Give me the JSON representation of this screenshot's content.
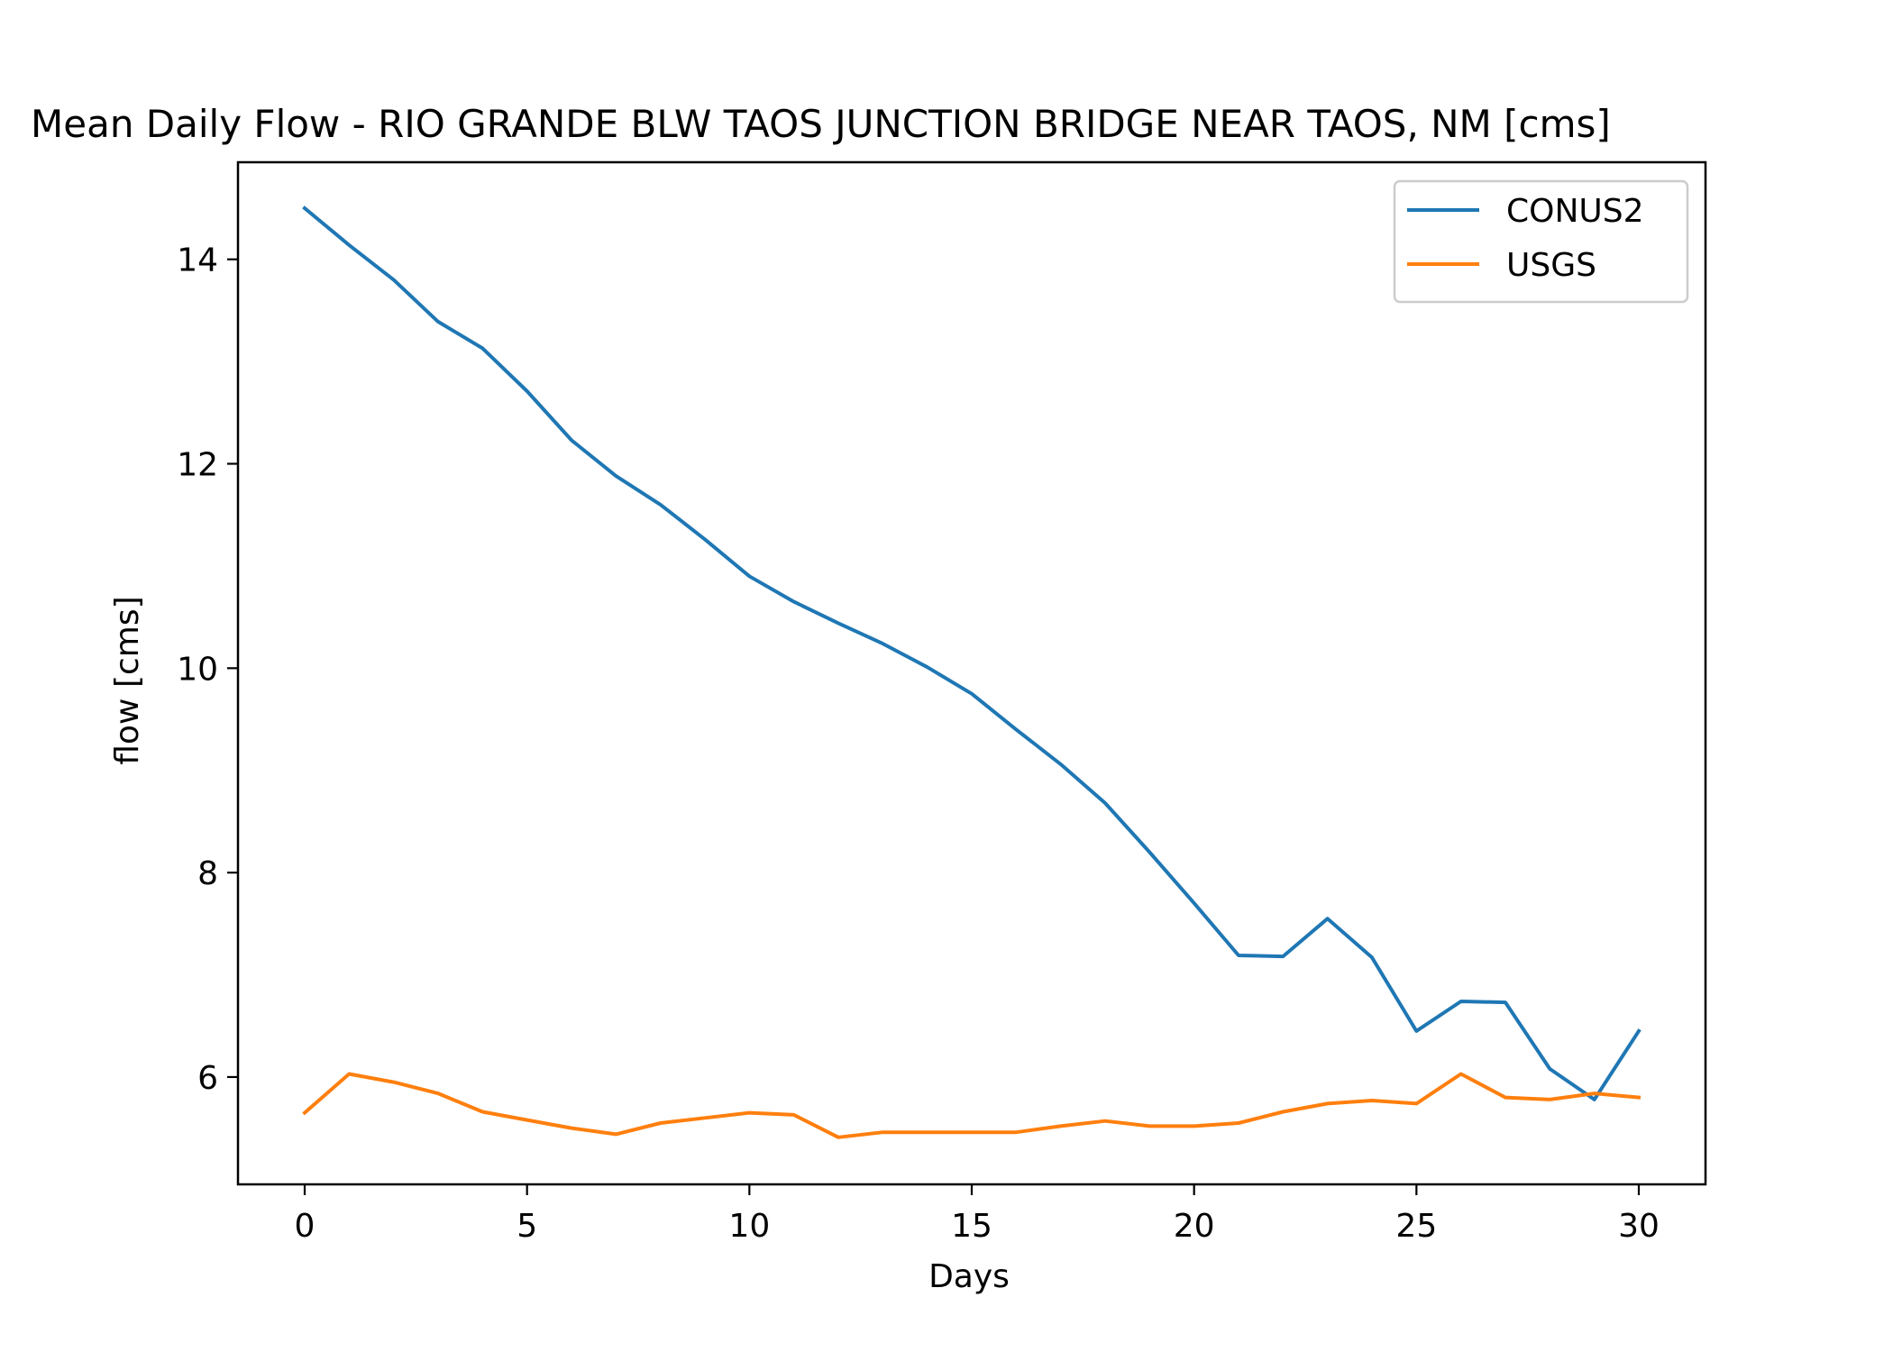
{
  "chart_data": {
    "type": "line",
    "title": "Mean Daily Flow - RIO GRANDE BLW TAOS JUNCTION BRIDGE NEAR TAOS, NM [cms]",
    "xlabel": "Days",
    "ylabel": "flow [cms]",
    "xlim": [
      -1.5,
      31.5
    ],
    "ylim": [
      4.95,
      14.95
    ],
    "xticks": [
      0,
      5,
      10,
      15,
      20,
      25,
      30
    ],
    "yticks": [
      6,
      8,
      10,
      12,
      14
    ],
    "grid": false,
    "legend_position": "top-right",
    "x": [
      0,
      1,
      2,
      3,
      4,
      5,
      6,
      7,
      8,
      9,
      10,
      11,
      12,
      13,
      14,
      15,
      16,
      17,
      18,
      19,
      20,
      21,
      22,
      23,
      24,
      25,
      26,
      27,
      28,
      29,
      30
    ],
    "series": [
      {
        "name": "CONUS2",
        "color": "#1f77b4",
        "values": [
          14.5,
          14.14,
          13.8,
          13.39,
          13.13,
          12.71,
          12.23,
          11.88,
          11.6,
          11.26,
          10.9,
          10.65,
          10.44,
          10.24,
          10.01,
          9.75,
          9.4,
          9.06,
          8.68,
          8.2,
          7.7,
          7.19,
          7.18,
          7.55,
          7.17,
          6.45,
          6.74,
          6.73,
          6.08,
          5.78,
          6.45
        ]
      },
      {
        "name": "USGS",
        "color": "#ff7f0e",
        "values": [
          5.65,
          6.03,
          5.95,
          5.84,
          5.66,
          5.58,
          5.5,
          5.44,
          5.55,
          5.6,
          5.65,
          5.63,
          5.41,
          5.46,
          5.46,
          5.46,
          5.46,
          5.52,
          5.57,
          5.52,
          5.52,
          5.55,
          5.66,
          5.74,
          5.77,
          5.74,
          6.03,
          5.8,
          5.78,
          5.84,
          5.8
        ]
      }
    ]
  }
}
